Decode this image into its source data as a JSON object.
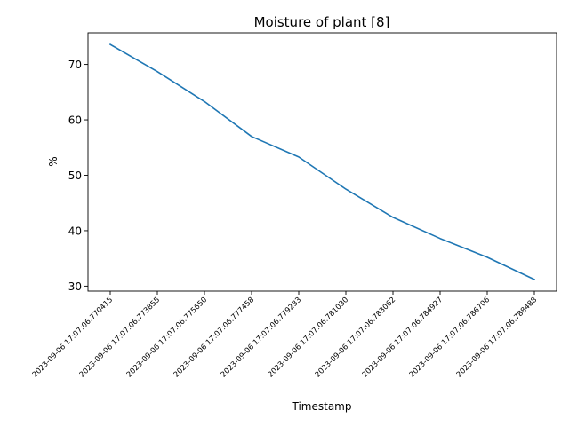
{
  "chart_data": {
    "type": "line",
    "title": "Moisture of plant [8]",
    "xlabel": "Timestamp",
    "ylabel": "%",
    "x": [
      "2023-09-06 17:07:06.770415",
      "2023-09-06 17:07:06.773855",
      "2023-09-06 17:07:06.775650",
      "2023-09-06 17:07:06.777458",
      "2023-09-06 17:07:06.779233",
      "2023-09-06 17:07:06.781030",
      "2023-09-06 17:07:06.783062",
      "2023-09-06 17:07:06.784927",
      "2023-09-06 17:07:06.786706",
      "2023-09-06 17:07:06.788488"
    ],
    "series": [
      {
        "values": [
          73.6,
          68.7,
          63.3,
          57.0,
          53.3,
          47.5,
          42.4,
          38.6,
          35.2,
          31.2
        ],
        "color": "#1f77b4"
      }
    ],
    "ylim": [
      29.1,
      75.7
    ],
    "yticks": [
      30,
      40,
      50,
      60,
      70
    ],
    "grid": false,
    "legend": "none"
  }
}
